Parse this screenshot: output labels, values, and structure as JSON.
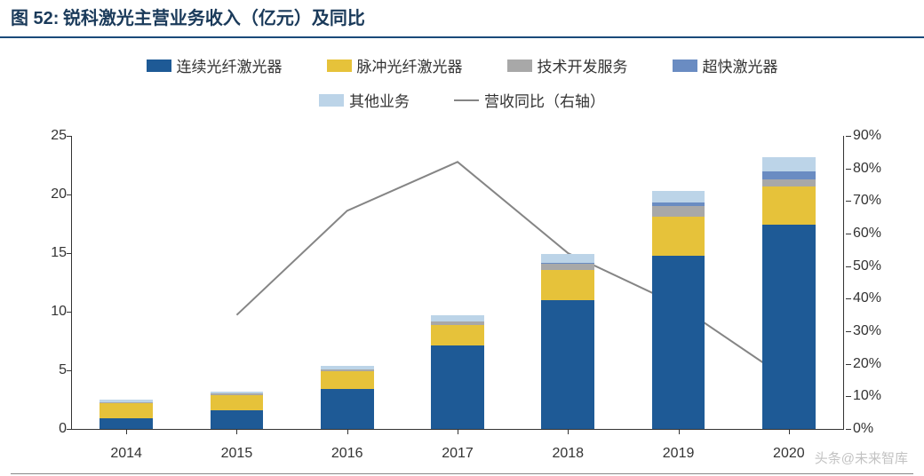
{
  "title_prefix": "图 52:",
  "title_text": "锐科激光主营业务收入（亿元）及同比",
  "title_fontsize": 20,
  "title_color": "#1a3a5a",
  "border_color": "#1a4a7a",
  "legend": [
    {
      "id": "s1",
      "label": "连续光纤激光器",
      "type": "box",
      "color": "#1e5a96"
    },
    {
      "id": "s2",
      "label": "脉冲光纤激光器",
      "type": "box",
      "color": "#e6c23a"
    },
    {
      "id": "s3",
      "label": "技术开发服务",
      "type": "box",
      "color": "#a8a8a8"
    },
    {
      "id": "s4",
      "label": "超快激光器",
      "type": "box",
      "color": "#6a8cc2"
    },
    {
      "id": "s5",
      "label": "其他业务",
      "type": "box",
      "color": "#bcd4e8"
    },
    {
      "id": "ln",
      "label": "营收同比（右轴）",
      "type": "line",
      "color": "#858585"
    }
  ],
  "chart": {
    "type": "stacked-bar-with-line",
    "categories": [
      "2014",
      "2015",
      "2016",
      "2017",
      "2018",
      "2019",
      "2020"
    ],
    "series_bars": {
      "s1": {
        "label": "连续光纤激光器",
        "color": "#1e5a96",
        "values": [
          0.9,
          1.6,
          3.4,
          7.1,
          11.0,
          14.8,
          17.4
        ]
      },
      "s2": {
        "label": "脉冲光纤激光器",
        "color": "#e6c23a",
        "values": [
          1.3,
          1.3,
          1.5,
          1.8,
          2.6,
          3.3,
          3.3
        ]
      },
      "s3": {
        "label": "技术开发服务",
        "color": "#a8a8a8",
        "values": [
          0.1,
          0.1,
          0.2,
          0.3,
          0.5,
          0.9,
          0.6
        ]
      },
      "s4": {
        "label": "超快激光器",
        "color": "#6a8cc2",
        "values": [
          0.0,
          0.0,
          0.0,
          0.0,
          0.1,
          0.3,
          0.7
        ]
      },
      "s5": {
        "label": "其他业务",
        "color": "#bcd4e8",
        "values": [
          0.2,
          0.2,
          0.3,
          0.5,
          0.7,
          1.0,
          1.2
        ]
      }
    },
    "stack_order": [
      "s1",
      "s2",
      "s3",
      "s4",
      "s5"
    ],
    "bar_width_ratio": 0.48,
    "line_series": {
      "id": "ln",
      "label": "营收同比（右轴）",
      "color": "#858585",
      "values": [
        null,
        35,
        67,
        82,
        54,
        38,
        15
      ],
      "stroke_width": 2
    },
    "y_left": {
      "min": 0,
      "max": 25,
      "step": 5,
      "label_fontsize": 16
    },
    "y_right": {
      "min": 0,
      "max": 90,
      "step": 10,
      "label_fontsize": 16,
      "suffix": "%"
    },
    "x_axis_fontsize": 16,
    "background_color": "#ffffff",
    "axis_color": "#333333"
  },
  "watermark": "头条@未来智库",
  "watermark_color": "#b8b8b8"
}
